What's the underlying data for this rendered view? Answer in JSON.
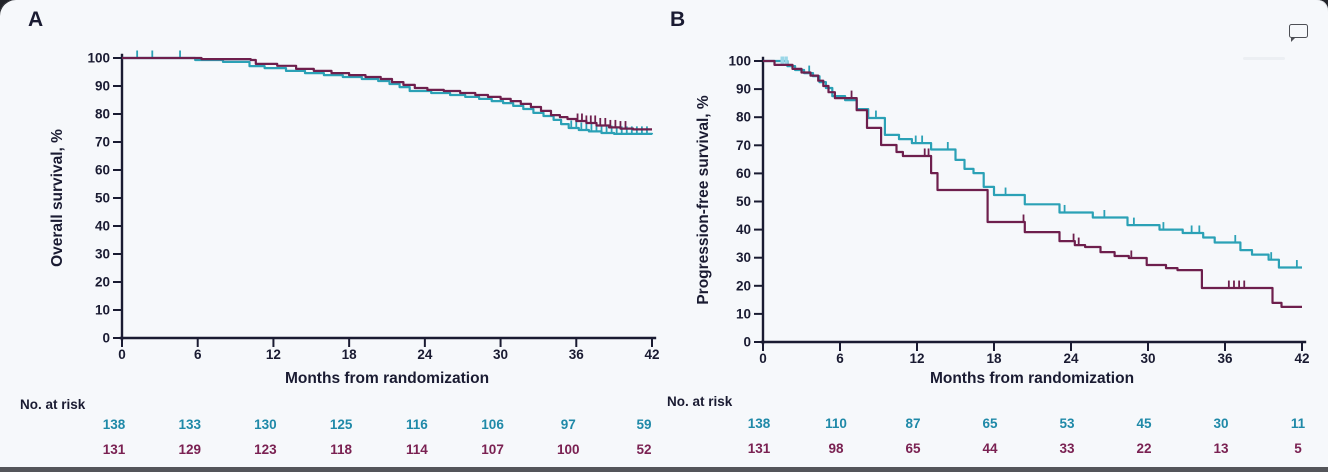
{
  "page": {
    "background": "#f6f8fb",
    "bottom_bar_color": "#54555a"
  },
  "annotations": {
    "comment_icon": "comment-bubble-icon"
  },
  "colors": {
    "axis_text": "#1a1b32",
    "arm1_line": "#2ba1b6",
    "arm2_line": "#6e1f4d",
    "arm1_risk_text": "#1f89a8",
    "arm2_risk_text": "#7a2152",
    "highlight_censor": "#9bd7e8"
  },
  "chart_data": [
    {
      "panel_letter": "A",
      "type": "line",
      "subtype": "kaplan-meier-step",
      "title": "",
      "ylabel": "Overall survival, %",
      "xlabel": "Months from randomization",
      "xlim": [
        0,
        42
      ],
      "ylim": [
        0,
        100
      ],
      "x_ticks": [
        0,
        6,
        12,
        18,
        24,
        30,
        36,
        42
      ],
      "y_ticks": [
        0,
        10,
        20,
        30,
        40,
        50,
        60,
        70,
        80,
        90,
        100
      ],
      "grid": false,
      "legend": "none",
      "series": [
        {
          "name": "arm-1-teal",
          "color": "#2ba1b6",
          "points": [
            [
              0,
              100
            ],
            [
              5.8,
              99.3
            ],
            [
              8.0,
              98.6
            ],
            [
              10.1,
              97.1
            ],
            [
              11.3,
              96.4
            ],
            [
              13,
              95.4
            ],
            [
              14.5,
              94.6
            ],
            [
              16,
              93.9
            ],
            [
              17.5,
              93.2
            ],
            [
              19,
              92.5
            ],
            [
              20.3,
              91.8
            ],
            [
              21.2,
              90.7
            ],
            [
              22,
              89.6
            ],
            [
              22.8,
              88.2
            ],
            [
              24.5,
              87.5
            ],
            [
              26,
              86.8
            ],
            [
              27.2,
              86.1
            ],
            [
              28.3,
              85.4
            ],
            [
              29.3,
              84.6
            ],
            [
              30.2,
              83.9
            ],
            [
              31,
              82.9
            ],
            [
              31.8,
              81.8
            ],
            [
              32.6,
              80.4
            ],
            [
              33.4,
              79.3
            ],
            [
              34.2,
              77.9
            ],
            [
              34.8,
              76.4
            ],
            [
              35.4,
              75.0
            ],
            [
              36.2,
              74.3
            ],
            [
              37,
              73.8
            ],
            [
              38,
              73.2
            ],
            [
              39,
              72.9
            ],
            [
              42,
              72.7
            ]
          ],
          "censor_times": [
            1.2,
            2.4,
            4.6,
            35.6,
            36.0,
            36.4,
            36.8,
            37.2,
            37.6,
            38.0,
            38.4,
            38.8,
            39.2,
            39.6,
            40.0,
            40.4,
            40.8,
            41.2,
            41.6
          ]
        },
        {
          "name": "arm-2-purple",
          "color": "#6e1f4d",
          "points": [
            [
              0,
              100
            ],
            [
              6.3,
              99.6
            ],
            [
              10.2,
              99.3
            ],
            [
              10.6,
              97.9
            ],
            [
              12.3,
              97.2
            ],
            [
              13.8,
              96.1
            ],
            [
              15.2,
              95.4
            ],
            [
              16.6,
              94.6
            ],
            [
              18,
              93.9
            ],
            [
              19.3,
              93.2
            ],
            [
              20.5,
              92.5
            ],
            [
              21.4,
              91.4
            ],
            [
              22.3,
              90.4
            ],
            [
              23.2,
              89.3
            ],
            [
              24.2,
              88.6
            ],
            [
              25.5,
              88.2
            ],
            [
              26.8,
              87.5
            ],
            [
              28,
              86.8
            ],
            [
              29,
              86.1
            ],
            [
              30,
              85.4
            ],
            [
              30.8,
              84.6
            ],
            [
              31.6,
              83.6
            ],
            [
              32.4,
              82.5
            ],
            [
              33.2,
              81.1
            ],
            [
              34,
              79.6
            ],
            [
              34.7,
              78.9
            ],
            [
              35.3,
              78.2
            ],
            [
              36,
              77.5
            ],
            [
              36.8,
              76.8
            ],
            [
              37.6,
              75.9
            ],
            [
              38.6,
              75.2
            ],
            [
              39.5,
              74.8
            ],
            [
              40.5,
              74.5
            ],
            [
              42,
              74.5
            ]
          ],
          "censor_times": [
            36.1,
            36.45,
            36.8,
            37.15,
            37.5,
            37.9,
            38.3,
            38.7,
            39.1,
            39.5,
            39.9
          ]
        }
      ],
      "at_risk": {
        "label": "No. at risk",
        "rows": [
          {
            "series": "arm-1-teal",
            "text_color": "#1f89a8",
            "values": [
              138,
              133,
              130,
              125,
              116,
              106,
              97,
              59
            ]
          },
          {
            "series": "arm-2-purple",
            "text_color": "#7a2152",
            "values": [
              131,
              129,
              123,
              118,
              114,
              107,
              100,
              52
            ]
          }
        ]
      }
    },
    {
      "panel_letter": "B",
      "type": "line",
      "subtype": "kaplan-meier-step",
      "title": "",
      "ylabel": "Progression-free survival, %",
      "xlabel": "Months from randomization",
      "xlim": [
        0,
        42
      ],
      "ylim": [
        0,
        100
      ],
      "x_ticks": [
        0,
        6,
        12,
        18,
        24,
        30,
        36,
        42
      ],
      "y_ticks": [
        0,
        10,
        20,
        30,
        40,
        50,
        60,
        70,
        80,
        90,
        100
      ],
      "grid": false,
      "legend": "none",
      "series": [
        {
          "name": "arm-1-teal",
          "color": "#2ba1b6",
          "points": [
            [
              0,
              100
            ],
            [
              1.9,
              98.2
            ],
            [
              2.5,
              96.8
            ],
            [
              3.2,
              95.7
            ],
            [
              3.9,
              94.6
            ],
            [
              4.4,
              92.5
            ],
            [
              4.9,
              90.4
            ],
            [
              5.4,
              87.5
            ],
            [
              6.4,
              86.1
            ],
            [
              7.3,
              82.9
            ],
            [
              8.2,
              79.7
            ],
            [
              9.5,
              73.7
            ],
            [
              10.6,
              72.2
            ],
            [
              11.6,
              70.8
            ],
            [
              13.1,
              68.5
            ],
            [
              15.0,
              64.8
            ],
            [
              15.7,
              61.6
            ],
            [
              16.4,
              60.1
            ],
            [
              17.2,
              55.2
            ],
            [
              18.0,
              52.3
            ],
            [
              20.4,
              49.0
            ],
            [
              23.1,
              46.1
            ],
            [
              25.7,
              44.3
            ],
            [
              28.4,
              41.6
            ],
            [
              30.9,
              40.0
            ],
            [
              32.7,
              38.8
            ],
            [
              34.3,
              37.2
            ],
            [
              35.2,
              35.4
            ],
            [
              37.2,
              32.7
            ],
            [
              38.1,
              31.1
            ],
            [
              39.4,
              29.3
            ],
            [
              40.2,
              26.5
            ],
            [
              42,
              26.5
            ]
          ],
          "censor_times": [
            3.6,
            8.8,
            11.9,
            12.4,
            14.4,
            18.9,
            23.5,
            26.6,
            28.9,
            31.2,
            33.4,
            34.0,
            36.8,
            39.6,
            41.6
          ],
          "highlight_censor_times": [
            1.5,
            1.8
          ],
          "highlight_censor_color": "#9bd7e8"
        },
        {
          "name": "arm-2-purple",
          "color": "#6e1f4d",
          "points": [
            [
              0,
              100
            ],
            [
              0.9,
              98.6
            ],
            [
              2.3,
              97.2
            ],
            [
              3.0,
              95.9
            ],
            [
              3.7,
              94.8
            ],
            [
              4.3,
              93.0
            ],
            [
              4.7,
              91.1
            ],
            [
              5.1,
              88.9
            ],
            [
              5.6,
              86.8
            ],
            [
              7.3,
              82.5
            ],
            [
              8.1,
              76.2
            ],
            [
              9.2,
              70.1
            ],
            [
              10.4,
              67.6
            ],
            [
              10.9,
              66.2
            ],
            [
              13.1,
              60.1
            ],
            [
              13.6,
              54.1
            ],
            [
              17.5,
              42.7
            ],
            [
              20.4,
              39.1
            ],
            [
              23.1,
              35.9
            ],
            [
              24.3,
              34.5
            ],
            [
              25.1,
              33.8
            ],
            [
              26.3,
              32.0
            ],
            [
              27.4,
              30.6
            ],
            [
              28.5,
              29.9
            ],
            [
              29.9,
              27.4
            ],
            [
              31.4,
              26.3
            ],
            [
              32.3,
              25.6
            ],
            [
              34.2,
              19.2
            ],
            [
              39.7,
              13.9
            ],
            [
              40.4,
              12.5
            ],
            [
              42,
              12.5
            ]
          ],
          "censor_times": [
            6.9,
            12.6,
            12.9,
            20.3,
            24.2,
            24.6,
            28.7,
            36.3,
            36.7,
            37.1,
            37.5
          ]
        }
      ],
      "at_risk": {
        "label": "No. at risk",
        "rows": [
          {
            "series": "arm-1-teal",
            "text_color": "#1f89a8",
            "values": [
              138,
              110,
              87,
              65,
              53,
              45,
              30,
              11
            ]
          },
          {
            "series": "arm-2-purple",
            "text_color": "#7a2152",
            "values": [
              131,
              98,
              65,
              44,
              33,
              22,
              13,
              5
            ]
          }
        ]
      }
    }
  ]
}
